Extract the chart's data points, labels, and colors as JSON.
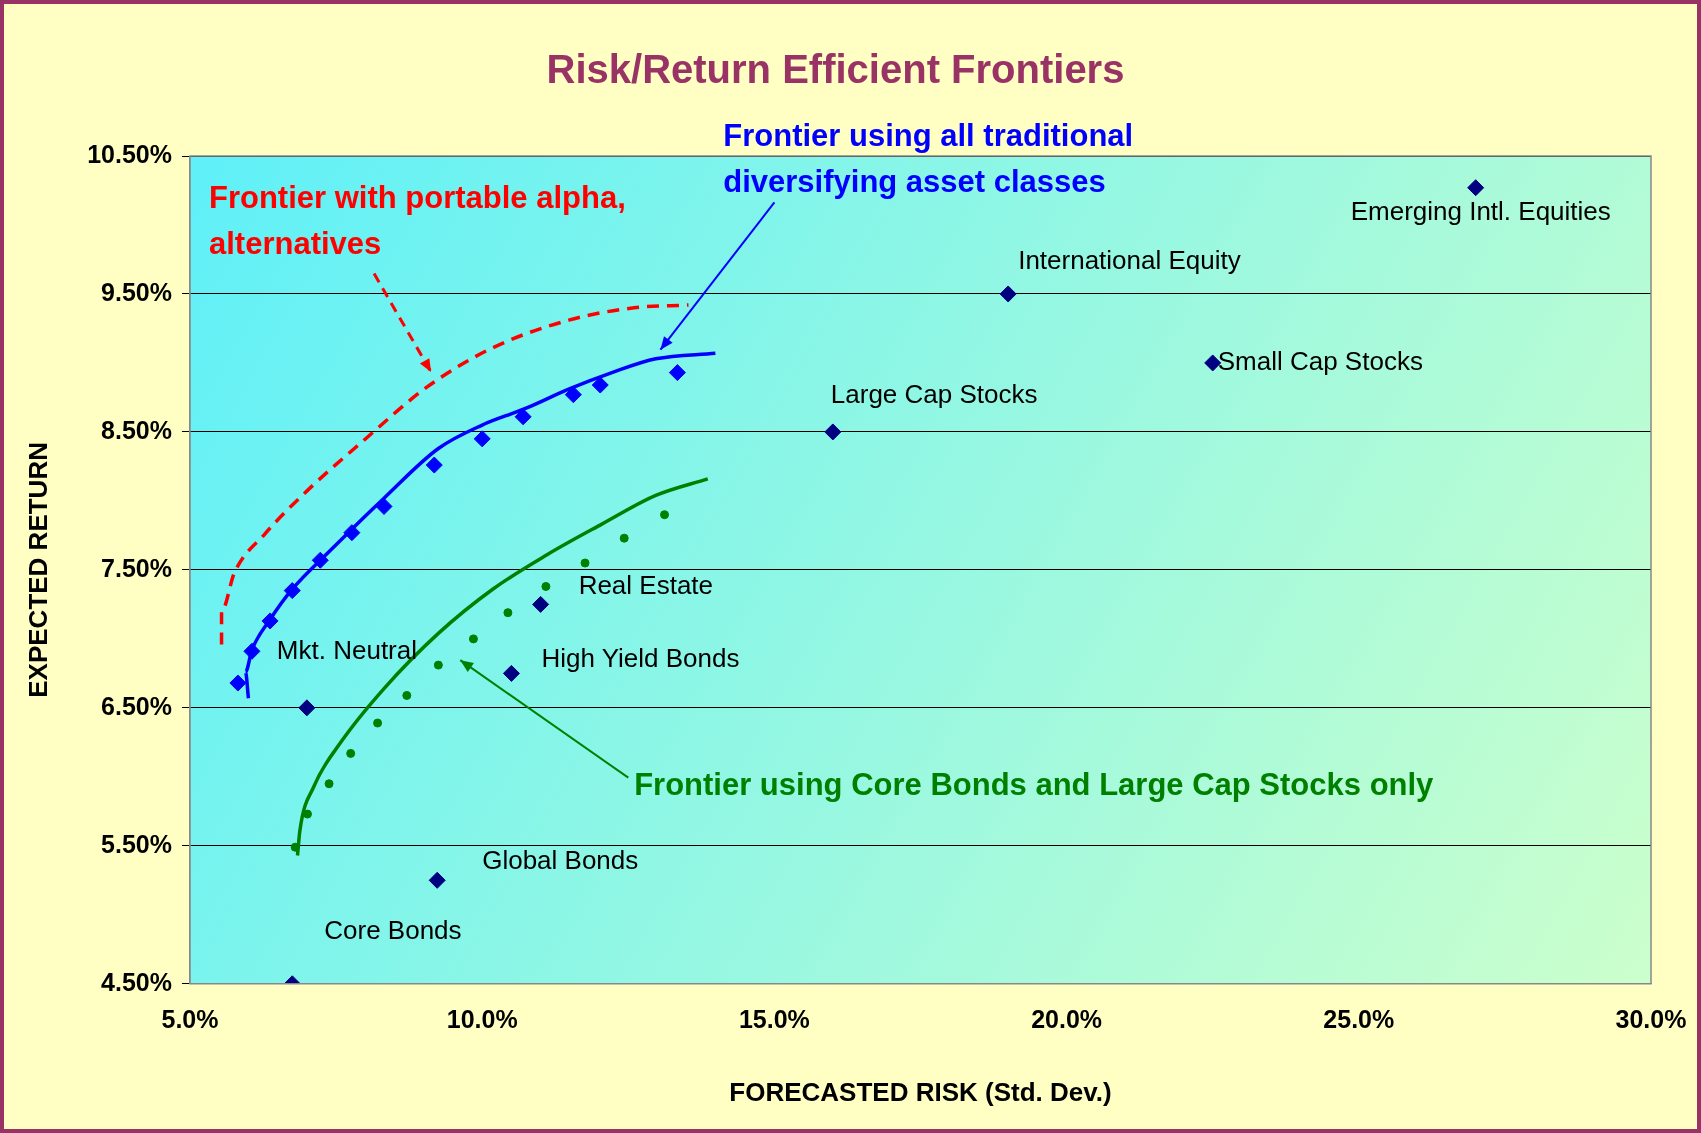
{
  "chart_data": {
    "type": "scatter",
    "title": "Risk/Return Efficient Frontiers",
    "xlabel": "FORECASTED RISK (Std. Dev.)",
    "ylabel": "EXPECTED RETURN",
    "xlim": [
      5,
      30
    ],
    "xticks": [
      {
        "value": 5,
        "label": "5.0%"
      },
      {
        "value": 10,
        "label": "10.0%"
      },
      {
        "value": 15,
        "label": "15.0%"
      },
      {
        "value": 20,
        "label": "20.0%"
      },
      {
        "value": 25,
        "label": "25.0%"
      },
      {
        "value": 30,
        "label": "30.0%"
      }
    ],
    "ylim": [
      4.5,
      10.5
    ],
    "yticks": [
      {
        "value": 4.5,
        "label": "4.50%"
      },
      {
        "value": 5.5,
        "label": "5.50%"
      },
      {
        "value": 6.5,
        "label": "6.50%"
      },
      {
        "value": 7.5,
        "label": "7.50%"
      },
      {
        "value": 8.5,
        "label": "8.50%"
      },
      {
        "value": 9.5,
        "label": "9.50%"
      },
      {
        "value": 10.5,
        "label": "10.50%"
      }
    ],
    "grid": "y",
    "legend": false,
    "series": [
      {
        "type": "scatter",
        "marker": "diamond",
        "color": "#000080",
        "x": [
          27.0,
          19.0,
          22.5,
          16.0,
          11.0,
          10.5,
          7.0,
          9.23,
          6.75
        ],
        "values": [
          10.27,
          9.5,
          9.0,
          8.5,
          7.25,
          6.75,
          6.5,
          5.25,
          4.5
        ]
      },
      {
        "type": "scatter",
        "marker": "diamond",
        "color": "#0000ff",
        "x": [
          5.82,
          6.06,
          6.37,
          6.75,
          7.23,
          7.77,
          8.32,
          9.18,
          10.0,
          10.7,
          11.56,
          12.02,
          13.34
        ],
        "values": [
          6.68,
          6.91,
          7.13,
          7.35,
          7.57,
          7.77,
          7.96,
          8.26,
          8.45,
          8.61,
          8.77,
          8.84,
          8.93
        ]
      },
      {
        "type": "line",
        "marker": "none",
        "line_style": "solid",
        "color": "#0000ff",
        "x": [
          6.0,
          5.95,
          6.06,
          6.37,
          6.75,
          7.4,
          8.32,
          9.25,
          10.0,
          10.74,
          11.48,
          12.22,
          12.97,
          13.99
        ],
        "values": [
          6.57,
          6.76,
          6.92,
          7.14,
          7.36,
          7.64,
          8.02,
          8.38,
          8.55,
          8.67,
          8.81,
          8.93,
          9.03,
          9.07
        ]
      },
      {
        "type": "line",
        "marker": "none",
        "line_style": "dashed",
        "color": "#ff0000",
        "x": [
          5.54,
          5.54,
          5.76,
          6.28,
          7.02,
          7.95,
          9.07,
          10.18,
          11.48,
          12.6,
          13.53
        ],
        "values": [
          6.96,
          7.2,
          7.48,
          7.76,
          8.08,
          8.43,
          8.83,
          9.11,
          9.31,
          9.4,
          9.42
        ]
      },
      {
        "type": "line",
        "marker": "none",
        "line_style": "solid",
        "color": "#008000",
        "x": [
          6.84,
          6.88,
          7.12,
          7.58,
          8.32,
          9.25,
          10.18,
          11.11,
          12.04,
          12.97,
          13.86
        ],
        "values": [
          5.43,
          5.61,
          5.93,
          6.25,
          6.64,
          7.04,
          7.36,
          7.61,
          7.83,
          8.04,
          8.16
        ]
      },
      {
        "type": "scatter",
        "marker": "circle",
        "color": "#008000",
        "x": [
          6.8,
          7.01,
          7.38,
          7.75,
          8.21,
          8.71,
          9.25,
          9.85,
          10.44,
          11.09,
          11.76,
          12.43,
          13.12
        ],
        "values": [
          5.49,
          5.73,
          5.95,
          6.17,
          6.39,
          6.59,
          6.81,
          7.0,
          7.19,
          7.38,
          7.55,
          7.73,
          7.9
        ]
      }
    ],
    "annotations": [
      {
        "text": "Emerging Intl. Equities",
        "x": 27.0,
        "y": 10.27
      },
      {
        "text": "International Equity",
        "x": 19.0,
        "y": 9.5
      },
      {
        "text": "Small Cap Stocks",
        "x": 22.5,
        "y": 9.0
      },
      {
        "text": "Large Cap Stocks",
        "x": 16.0,
        "y": 8.5
      },
      {
        "text": "Real Estate",
        "x": 11.0,
        "y": 7.25
      },
      {
        "text": "High Yield Bonds",
        "x": 10.5,
        "y": 6.75
      },
      {
        "text": "Mkt. Neutral",
        "x": 7.0,
        "y": 6.5
      },
      {
        "text": "Global Bonds",
        "x": 9.23,
        "y": 5.25
      },
      {
        "text": "Core Bonds",
        "x": 6.75,
        "y": 4.5
      },
      "Frontier with portable alpha,\nalternatives",
      "Frontier using all traditional\ndiversifying asset classes",
      "Frontier using Core Bonds and Large Cap Stocks only"
    ]
  }
}
